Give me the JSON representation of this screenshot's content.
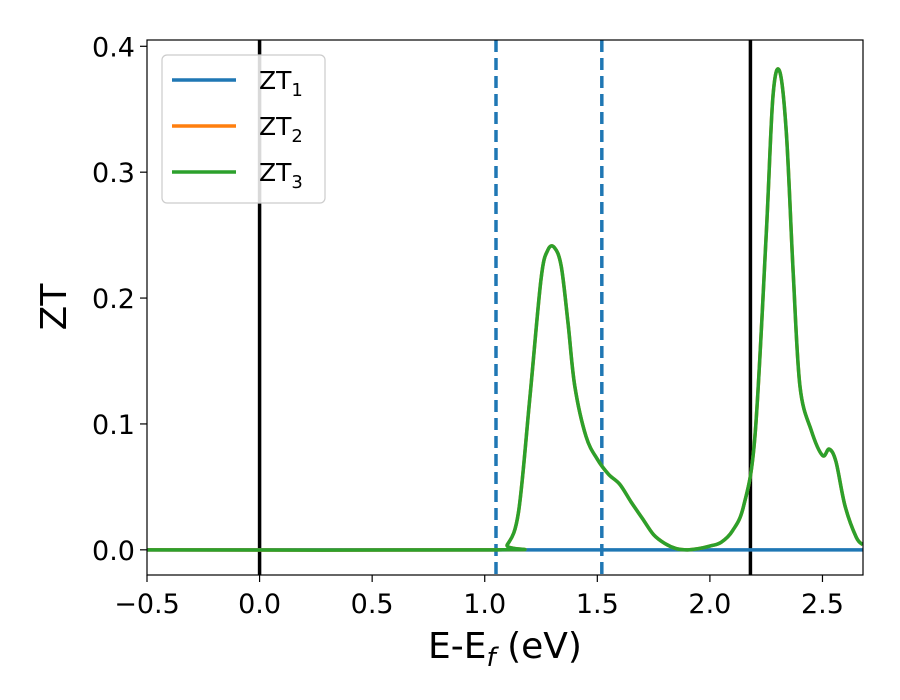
{
  "chart_data": {
    "type": "line",
    "xlabel": "E-E_f (eV)",
    "ylabel": "ZT",
    "xlim": [
      -0.5,
      2.68
    ],
    "ylim": [
      -0.02,
      0.405
    ],
    "x_ticks": [
      -0.5,
      0.0,
      0.5,
      1.0,
      1.5,
      2.0,
      2.5
    ],
    "x_tick_labels": [
      "−0.5",
      "0.0",
      "0.5",
      "1.0",
      "1.5",
      "2.0",
      "2.5"
    ],
    "y_ticks": [
      0.0,
      0.1,
      0.2,
      0.3,
      0.4
    ],
    "y_tick_labels": [
      "0.0",
      "0.1",
      "0.2",
      "0.3",
      "0.4"
    ],
    "grid": false,
    "legend_position": "top-left",
    "legend": [
      {
        "base": "ZT",
        "sub": "1",
        "color": "#1f77b4"
      },
      {
        "base": "ZT",
        "sub": "2",
        "color": "#ff7f0e"
      },
      {
        "base": "ZT",
        "sub": "3",
        "color": "#2ca02c"
      }
    ],
    "series": [
      {
        "name": "ZT1",
        "color": "#1f77b4",
        "x": [
          -0.5,
          2.68
        ],
        "y": [
          0.0,
          0.0
        ]
      },
      {
        "name": "ZT2",
        "color": "#ff7f0e",
        "x": [
          -0.5,
          1.05,
          1.1,
          1.15,
          1.2,
          1.25,
          1.28,
          1.31,
          1.34,
          1.37,
          1.4,
          1.45,
          1.5,
          1.55,
          1.6,
          1.65,
          1.7,
          1.75,
          1.8,
          1.85,
          1.9,
          1.95,
          2.0,
          2.05,
          2.1,
          2.15,
          2.2,
          2.25,
          2.28,
          2.31,
          2.34,
          2.37,
          2.4,
          2.45,
          2.5,
          2.53,
          2.56,
          2.6,
          2.65,
          2.68
        ],
        "y": [
          0.0,
          0.0,
          0.004,
          0.03,
          0.12,
          0.215,
          0.238,
          0.24,
          0.225,
          0.18,
          0.13,
          0.09,
          0.072,
          0.06,
          0.052,
          0.038,
          0.025,
          0.012,
          0.005,
          0.001,
          0.0,
          0.001,
          0.003,
          0.006,
          0.015,
          0.035,
          0.09,
          0.25,
          0.36,
          0.38,
          0.33,
          0.22,
          0.13,
          0.095,
          0.075,
          0.08,
          0.07,
          0.035,
          0.01,
          0.004
        ]
      },
      {
        "name": "ZT3",
        "color": "#2ca02c",
        "x": [
          -0.5,
          1.05,
          1.1,
          1.15,
          1.2,
          1.25,
          1.28,
          1.31,
          1.34,
          1.37,
          1.4,
          1.45,
          1.5,
          1.55,
          1.6,
          1.65,
          1.7,
          1.75,
          1.8,
          1.85,
          1.9,
          1.95,
          2.0,
          2.05,
          2.1,
          2.15,
          2.2,
          2.25,
          2.28,
          2.31,
          2.34,
          2.37,
          2.4,
          2.45,
          2.5,
          2.53,
          2.56,
          2.6,
          2.65,
          2.68
        ],
        "y": [
          0.0,
          0.0,
          0.004,
          0.03,
          0.12,
          0.215,
          0.238,
          0.24,
          0.225,
          0.18,
          0.13,
          0.09,
          0.072,
          0.06,
          0.052,
          0.038,
          0.025,
          0.012,
          0.005,
          0.001,
          0.0,
          0.001,
          0.003,
          0.006,
          0.015,
          0.035,
          0.09,
          0.25,
          0.36,
          0.38,
          0.33,
          0.22,
          0.13,
          0.095,
          0.075,
          0.08,
          0.07,
          0.035,
          0.01,
          0.004
        ]
      }
    ],
    "vertical_lines": [
      {
        "x": 0.0,
        "style": "solid",
        "color": "#000000"
      },
      {
        "x": 2.18,
        "style": "solid",
        "color": "#000000"
      },
      {
        "x": 1.05,
        "style": "dashed",
        "color": "#1f77b4"
      },
      {
        "x": 1.52,
        "style": "dashed",
        "color": "#1f77b4"
      }
    ]
  }
}
